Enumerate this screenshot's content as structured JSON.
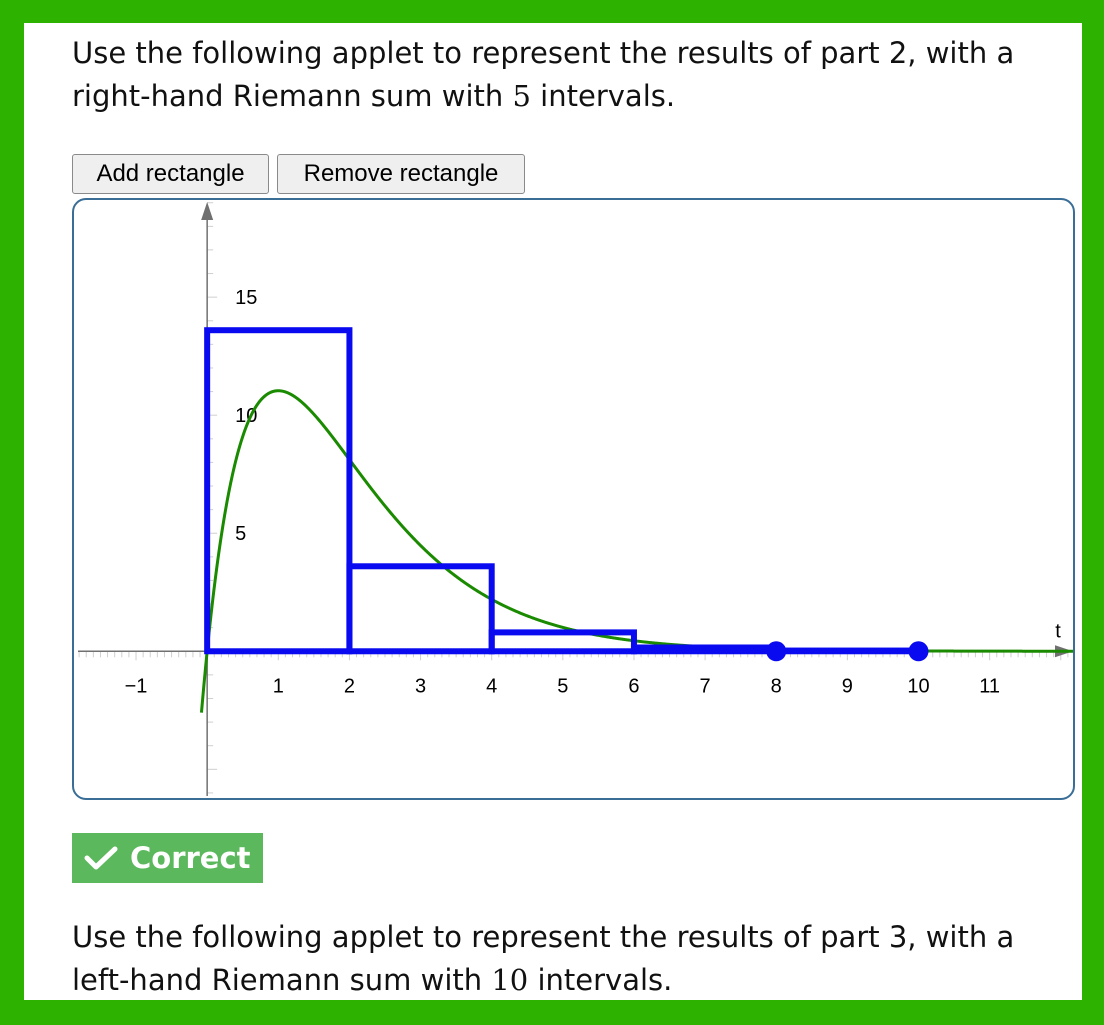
{
  "prompts": {
    "part2": {
      "before": "Use the following applet to represent the results of part 2, with a right-hand Riemann sum with ",
      "n": "5",
      "after": " intervals."
    },
    "part3": {
      "before": "Use the following applet to represent the results of part 3, with a left-hand Riemann sum with ",
      "n": "10",
      "after": " intervals."
    }
  },
  "buttons": {
    "add": "Add rectangle",
    "remove": "Remove rectangle"
  },
  "feedback": {
    "label": "Correct",
    "icon": "checkmark-icon",
    "color": "#5cb85c"
  },
  "colors": {
    "curve": "#1a8a00",
    "rectangles": "#0a0af0",
    "axes": "#707070",
    "frame": "#3b6e97"
  },
  "chart_data": {
    "type": "line",
    "xlabel": "t",
    "ylabel": "",
    "xlim": [
      -1.9,
      12.2
    ],
    "ylim": [
      -6.3,
      19.2
    ],
    "x_ticks": [
      -1,
      1,
      2,
      3,
      4,
      5,
      6,
      7,
      8,
      9,
      10,
      11
    ],
    "y_ticks": [
      5,
      10,
      15
    ],
    "grid": false,
    "curve": {
      "function": "30*t*exp(-t)"
    },
    "rectangles": [
      {
        "x0": 0,
        "x1": 2,
        "height": 13.6
      },
      {
        "x0": 2,
        "x1": 4,
        "height": 3.6
      },
      {
        "x0": 4,
        "x1": 6,
        "height": 0.8
      },
      {
        "x0": 6,
        "x1": 8,
        "height": 0.16
      },
      {
        "x0": 8,
        "x1": 10,
        "height": 0.03
      }
    ],
    "handles": [
      {
        "x": 8,
        "y": 0
      },
      {
        "x": 10,
        "y": 0
      }
    ]
  }
}
